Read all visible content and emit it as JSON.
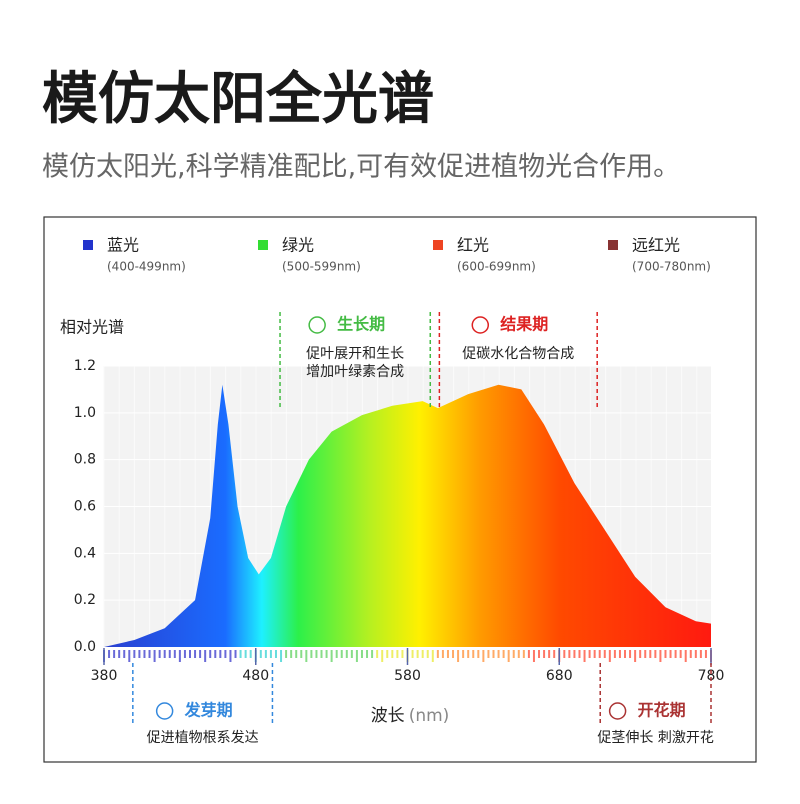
{
  "chart_data": {
    "type": "area",
    "title": "模仿太阳全光谱",
    "subtitle": "模仿太阳光,科学精准配比,可有效促进植物光合作用。",
    "legend": [
      {
        "name": "蓝光",
        "range": "(400-499nm)",
        "color": "#2233cc"
      },
      {
        "name": "绿光",
        "range": "(500-599nm)",
        "color": "#33dd33"
      },
      {
        "name": "红光",
        "range": "(600-699nm)",
        "color": "#ee4422"
      },
      {
        "name": "远红光",
        "range": "(700-780nm)",
        "color": "#883333"
      }
    ],
    "y_label": "相对光谱",
    "x_label": "波长",
    "x_unit": "(nm)",
    "x": [
      380,
      400,
      420,
      440,
      450,
      455,
      458,
      462,
      468,
      475,
      482,
      490,
      500,
      515,
      530,
      550,
      570,
      590,
      600,
      620,
      640,
      655,
      670,
      690,
      710,
      730,
      750,
      770,
      780
    ],
    "values": [
      0.0,
      0.03,
      0.08,
      0.2,
      0.55,
      0.95,
      1.12,
      0.95,
      0.6,
      0.38,
      0.31,
      0.38,
      0.6,
      0.8,
      0.92,
      0.99,
      1.03,
      1.05,
      1.02,
      1.08,
      1.12,
      1.1,
      0.95,
      0.7,
      0.5,
      0.3,
      0.17,
      0.11,
      0.1
    ],
    "xlim": [
      380,
      780
    ],
    "xticks": [
      380,
      480,
      580,
      680,
      780
    ],
    "ylim": [
      0,
      1.2
    ],
    "yticks": [
      {
        "value": 0,
        "label": "0.0"
      },
      0.2,
      0.4,
      0.6,
      0.8,
      {
        "value": 1,
        "label": "1.0"
      },
      1.2
    ],
    "annotations": [
      {
        "title": "生长期",
        "lines": [
          "促叶展开和生长",
          "增加叶绿素合成"
        ],
        "range": [
          496,
          595
        ],
        "color": "#44bb44"
      },
      {
        "title": "结果期",
        "lines": [
          "促碳水化合物合成"
        ],
        "range": [
          601,
          705
        ],
        "color": "#dd2222"
      },
      {
        "title": "发芽期",
        "lines": [
          "促进植物根系发达"
        ],
        "range": [
          399,
          491
        ],
        "color": "#3388dd"
      },
      {
        "title": "开花期",
        "lines": [
          "促茎伸长 刺激开花"
        ],
        "range": [
          707,
          780
        ],
        "color": "#aa3333"
      }
    ]
  }
}
